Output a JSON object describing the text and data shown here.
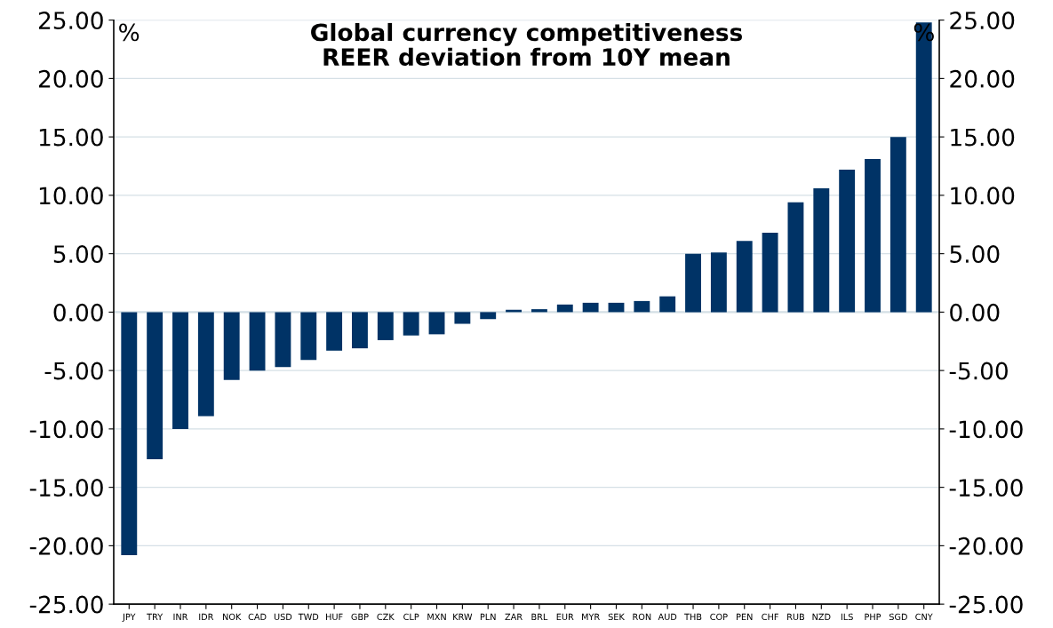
{
  "chart_data": {
    "type": "bar",
    "title": "Global currency competitiveness\nREER deviation from 10Y mean",
    "categories": [
      "JPY",
      "TRY",
      "INR",
      "IDR",
      "NOK",
      "CAD",
      "USD",
      "TWD",
      "HUF",
      "GBP",
      "CZK",
      "CLP",
      "MXN",
      "KRW",
      "PLN",
      "ZAR",
      "BRL",
      "EUR",
      "MYR",
      "SEK",
      "RON",
      "AUD",
      "THB",
      "COP",
      "PEN",
      "CHF",
      "RUB",
      "NZD",
      "ILS",
      "PHP",
      "SGD",
      "CNY"
    ],
    "values": [
      -20.8,
      -12.6,
      -10.0,
      -8.9,
      -5.8,
      -5.0,
      -4.7,
      -4.1,
      -3.3,
      -3.1,
      -2.4,
      -2.0,
      -1.9,
      -1.0,
      -0.6,
      0.2,
      0.25,
      0.65,
      0.8,
      0.8,
      0.95,
      1.35,
      5.0,
      5.1,
      6.1,
      6.8,
      9.4,
      10.6,
      12.2,
      13.1,
      15.0,
      24.8
    ],
    "color": "#003366",
    "ylim": [
      -25,
      25
    ],
    "yticks": [
      {
        "value": -25,
        "label": "-25.00"
      },
      {
        "value": -20,
        "label": "-20.00"
      },
      {
        "value": -15,
        "label": "-15.00"
      },
      {
        "value": -10,
        "label": "-10.00"
      },
      {
        "value": -5,
        "label": "-5.00"
      },
      {
        "value": 0,
        "label": "0.00"
      },
      {
        "value": 5,
        "label": "5.00"
      },
      {
        "value": 10,
        "label": "10.00"
      },
      {
        "value": 15,
        "label": "15.00"
      },
      {
        "value": 20,
        "label": "20.00"
      },
      {
        "value": 25,
        "label": "25.00"
      }
    ],
    "y2lim": [
      -25,
      25
    ],
    "y2ticks": [
      {
        "value": -25,
        "label": "-25.00"
      },
      {
        "value": -20,
        "label": "-20.00"
      },
      {
        "value": -15,
        "label": "-15.00"
      },
      {
        "value": -10,
        "label": "-10.00"
      },
      {
        "value": -5,
        "label": "-5.00"
      },
      {
        "value": 0,
        "label": "0.00"
      },
      {
        "value": 5,
        "label": "5.00"
      },
      {
        "value": 10,
        "label": "10.00"
      },
      {
        "value": 15,
        "label": "15.00"
      },
      {
        "value": 20,
        "label": "20.00"
      },
      {
        "value": 25,
        "label": "25.00"
      }
    ],
    "grid": "y",
    "annotations": [
      "%",
      "%"
    ]
  }
}
